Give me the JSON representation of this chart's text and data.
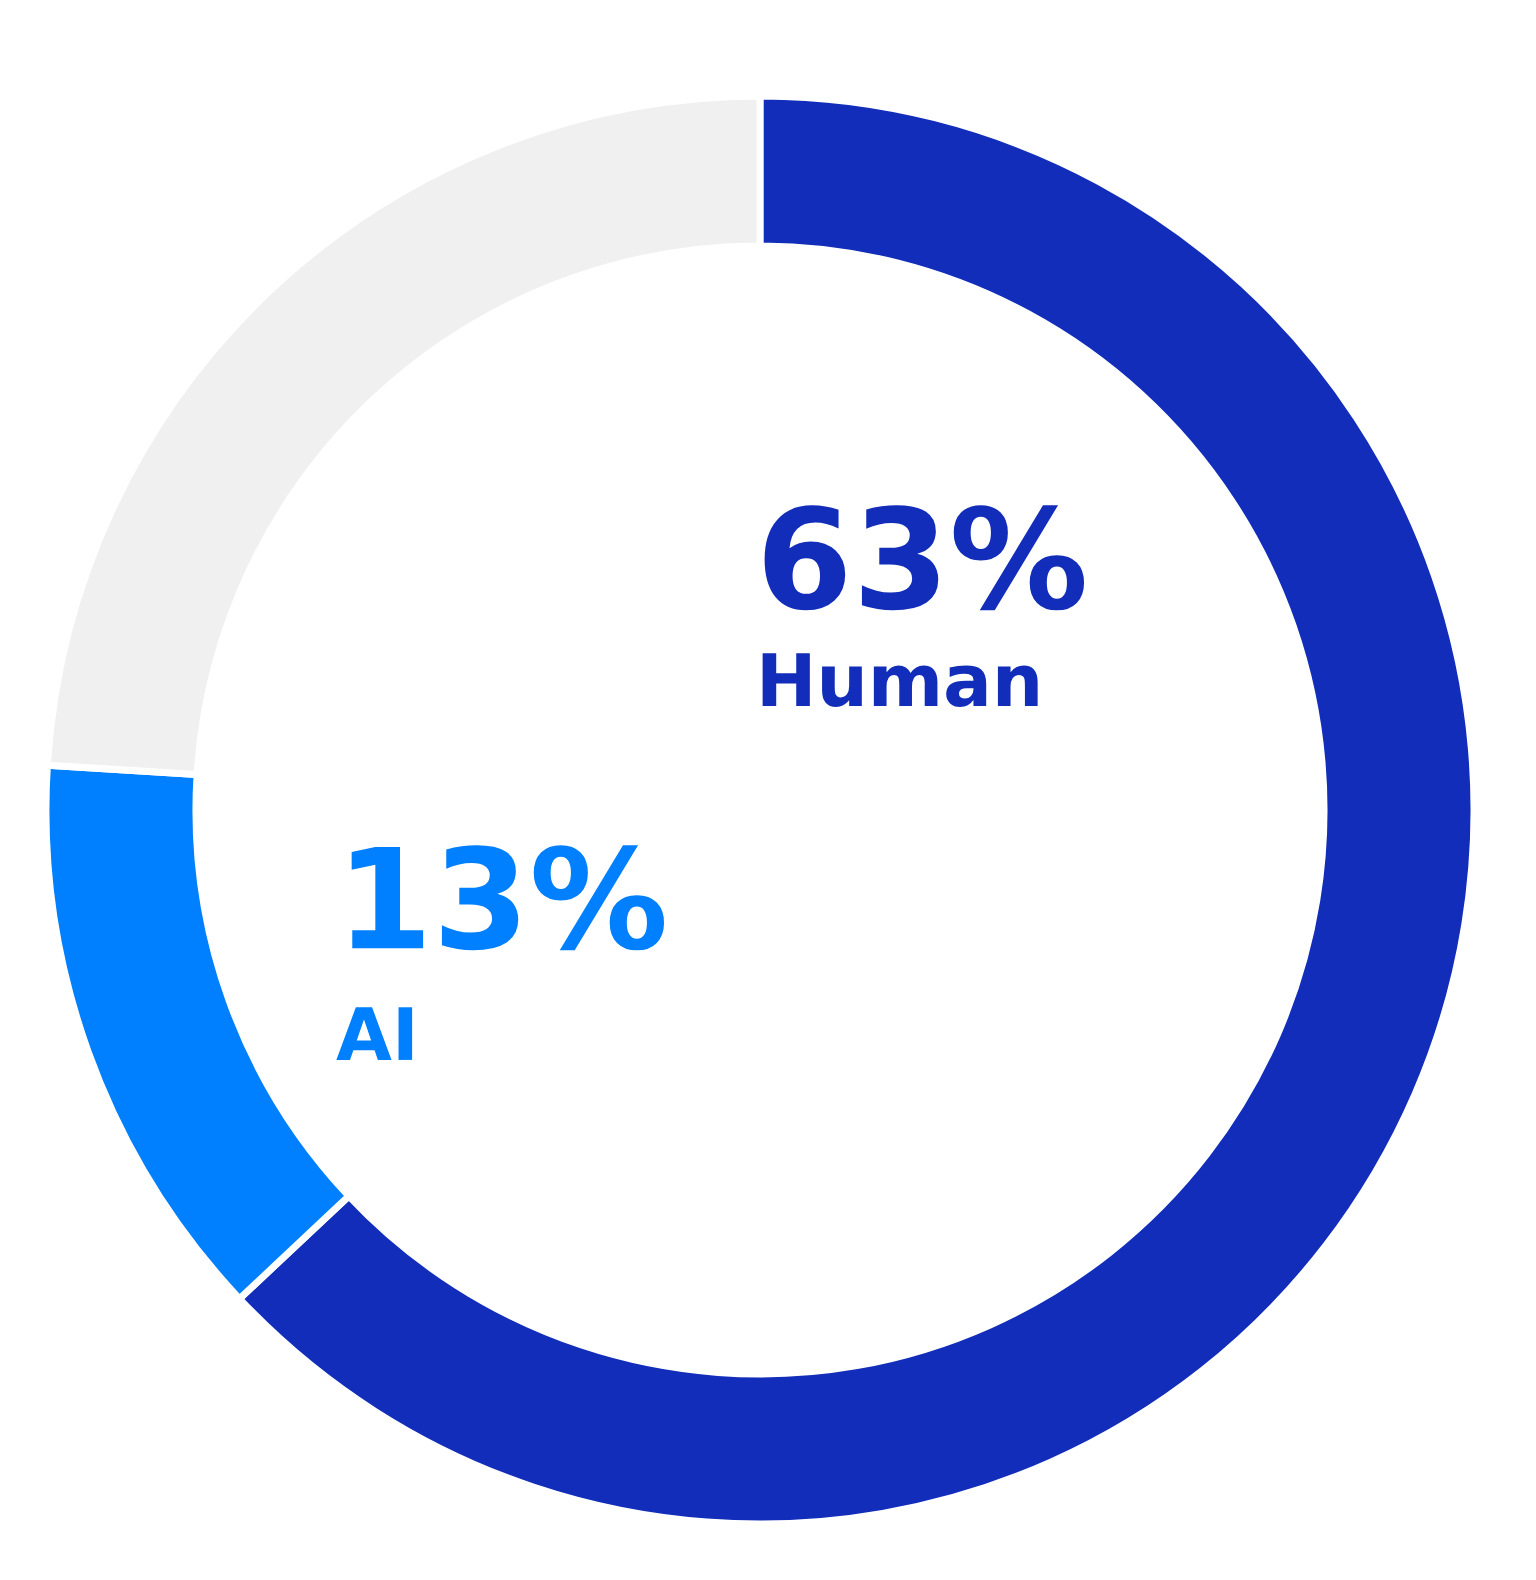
{
  "chart_data": {
    "type": "donut",
    "categories": [
      "Human",
      "AI",
      null
    ],
    "values": [
      63,
      13,
      24
    ],
    "value_labels": [
      "63%",
      "13%",
      null
    ],
    "colors": [
      "#112db9",
      "#0080ff",
      "#f0f0f0"
    ]
  }
}
